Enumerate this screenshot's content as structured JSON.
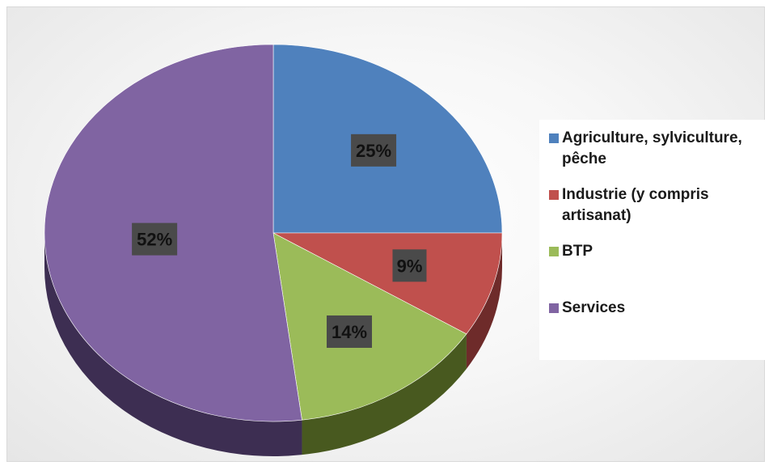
{
  "chart_data": {
    "type": "pie",
    "title": "",
    "three_d": true,
    "legend_position": "right",
    "categories": [
      "Agriculture, sylviculture, pêche",
      "Industrie (y compris artisanat)",
      "BTP",
      "Services"
    ],
    "values": [
      25,
      9,
      14,
      52
    ],
    "data_labels": [
      "25%",
      "9%",
      "14%",
      "52%"
    ],
    "colors": [
      "#4f81bd",
      "#c0504d",
      "#9bbb59",
      "#8064a2"
    ],
    "side_colors": [
      "#2c4a70",
      "#6e2b2a",
      "#48591f",
      "#3d2e52"
    ]
  }
}
